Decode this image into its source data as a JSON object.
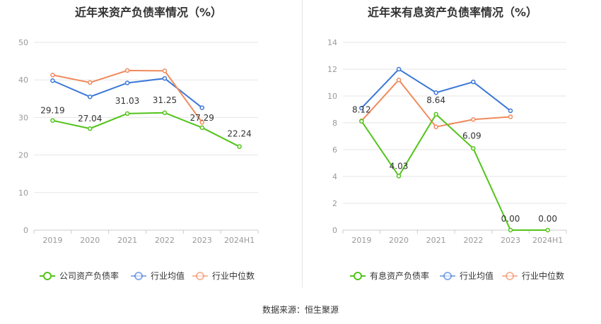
{
  "source": {
    "label": "数据来源：",
    "name": "恒生聚源"
  },
  "colors": {
    "company": "#52c41a",
    "average": "#3c78d8",
    "median": "#f08a5d"
  },
  "chart_data": [
    {
      "type": "line",
      "title": "近年来资产负债率情况（%）",
      "categories": [
        "2019",
        "2020",
        "2021",
        "2022",
        "2023",
        "2024H1"
      ],
      "ylim": [
        0,
        50
      ],
      "yticks": [
        "0",
        "10",
        "20",
        "30",
        "40",
        "50"
      ],
      "grid": true,
      "legend_position": "bottom",
      "series": [
        {
          "name": "公司资产负债率",
          "key": "company",
          "values": [
            29.19,
            27.04,
            31.03,
            31.25,
            27.29,
            22.24
          ],
          "labels": [
            "29.19",
            "27.04",
            "31.03",
            "31.25",
            "27.29",
            "22.24"
          ]
        },
        {
          "name": "行业均值",
          "key": "average",
          "values": [
            39.8,
            35.5,
            39.2,
            40.4,
            32.6,
            null
          ]
        },
        {
          "name": "行业中位数",
          "key": "median",
          "values": [
            41.3,
            39.3,
            42.5,
            42.4,
            28.7,
            null
          ]
        }
      ]
    },
    {
      "type": "line",
      "title": "近年来有息资产负债率情况（%）",
      "categories": [
        "2019",
        "2020",
        "2021",
        "2022",
        "2023",
        "2024H1"
      ],
      "ylim": [
        0,
        14
      ],
      "yticks": [
        "0",
        "2",
        "4",
        "6",
        "8",
        "10",
        "12",
        "14"
      ],
      "grid": true,
      "legend_position": "bottom",
      "series": [
        {
          "name": "有息资产负债率",
          "key": "company",
          "values": [
            8.12,
            4.03,
            8.64,
            6.09,
            0.0,
            0.0
          ],
          "labels": [
            "8.12",
            "4.03",
            "8.64",
            "6.09",
            "0.00",
            "0.00"
          ]
        },
        {
          "name": "行业均值",
          "key": "average",
          "values": [
            9.1,
            12.0,
            10.25,
            11.05,
            8.9,
            null
          ]
        },
        {
          "name": "行业中位数",
          "key": "median",
          "values": [
            8.15,
            11.2,
            7.7,
            8.25,
            8.45,
            null
          ]
        }
      ]
    }
  ]
}
